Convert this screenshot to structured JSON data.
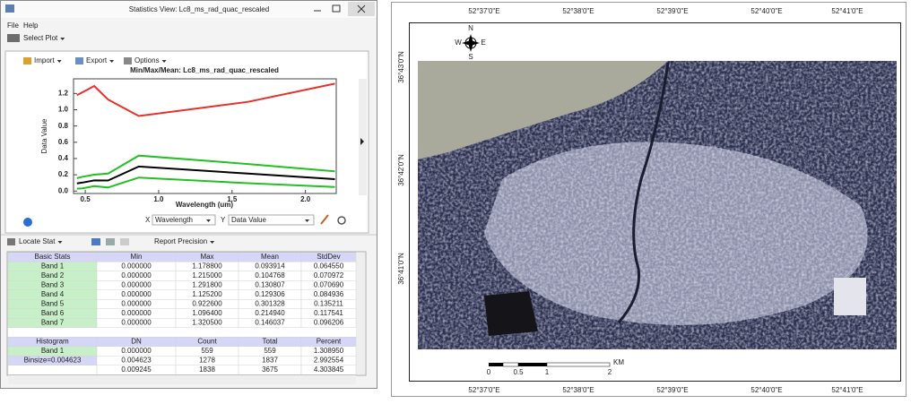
{
  "window": {
    "title": "Statistics View: Lc8_ms_rad_quac_rescaled",
    "menu": [
      "File",
      "Help"
    ],
    "toolbar": "Select Plot",
    "plot_toolbar": [
      "Import",
      "Export",
      "Options"
    ],
    "axis_controls": {
      "x_label": "X",
      "x_value": "Wavelength",
      "y_label": "Y",
      "y_value": "Data Value"
    },
    "stats_toolbar": [
      "Locate Stat",
      "Report Precision"
    ]
  },
  "chart_data": {
    "type": "line",
    "title": "Min/Max/Mean: Lc8_ms_rad_quac_rescaled",
    "x_label": "Wavelength (um)",
    "y_label": "Data Value",
    "x": [
      0.443,
      0.482,
      0.561,
      0.655,
      0.865,
      1.609,
      2.201
    ],
    "series": [
      {
        "color": "#e8302a",
        "values": [
          1.1788,
          1.215,
          1.2918,
          1.1252,
          0.9226,
          1.0964,
          1.3205
        ]
      },
      {
        "color": "#22c022",
        "values": [
          0.158,
          0.176,
          0.2015,
          0.2143,
          0.4365,
          0.3324,
          0.2423
        ]
      },
      {
        "color": "#000000",
        "values": [
          0.0939,
          0.1048,
          0.1308,
          0.1293,
          0.3013,
          0.2149,
          0.146
        ]
      },
      {
        "color": "#22c022",
        "values": [
          0.029,
          0.034,
          0.06,
          0.044,
          0.166,
          0.097,
          0.05
        ]
      }
    ],
    "xlim": [
      0.42,
      2.21
    ],
    "ylim": [
      -0.03,
      1.38
    ],
    "xticks": [
      0.5,
      {
        "value": 1,
        "label": "1.0"
      },
      1.5,
      {
        "value": 2,
        "label": "2.0"
      }
    ],
    "yticks": [
      {
        "value": 0,
        "label": "0.0"
      },
      0.2,
      0.4,
      0.6,
      0.8,
      {
        "value": 1,
        "label": "1.0"
      },
      1.2
    ]
  },
  "table": {
    "basic_header": [
      "Basic Stats",
      "Min",
      "Max",
      "Mean",
      "StdDev"
    ],
    "basic_rows": [
      [
        "Band 1",
        "0.000000",
        "1.178800",
        "0.093914",
        "0.064550"
      ],
      [
        "Band 2",
        "0.000000",
        "1.215000",
        "0.104768",
        "0.070972"
      ],
      [
        "Band 3",
        "0.000000",
        "1.291800",
        "0.130807",
        "0.070690"
      ],
      [
        "Band 4",
        "0.000000",
        "1.125200",
        "0.129306",
        "0.084936"
      ],
      [
        "Band 5",
        "0.000000",
        "0.922600",
        "0.301328",
        "0.135211"
      ],
      [
        "Band 6",
        "0.000000",
        "1.096400",
        "0.214940",
        "0.117541"
      ],
      [
        "Band 7",
        "0.000000",
        "1.320500",
        "0.146037",
        "0.096206"
      ]
    ],
    "histogram_header": [
      "Histogram",
      "DN",
      "Count",
      "Total",
      "Percent"
    ],
    "histogram_rows": [
      [
        "Band 1",
        "0.000000",
        "559",
        "559",
        "1.308950"
      ],
      [
        "Binsize=0.004623",
        "0.004623",
        "1278",
        "1837",
        "2.992554"
      ],
      [
        null,
        "0.009245",
        "1838",
        "3675",
        "4.303845"
      ]
    ]
  },
  "map": {
    "top_longitudes": [
      "52°37'0\"E",
      "52°38'0\"E",
      "52°39'0\"E",
      "52°40'0\"E",
      "52°41'0\"E"
    ],
    "bottom_longitudes": [
      "52°37'0\"E",
      "52°38'0\"E",
      "52°39'0\"E",
      "52°40'0\"E",
      "52°41'0\"E"
    ],
    "left_latitudes": [
      "36°43'0\"N",
      "36°42'0\"N",
      "36°41'0\"N"
    ],
    "north_arrow": [
      "N",
      "W",
      "E",
      "S"
    ],
    "scale_labels": [
      "0",
      "0.5",
      "1",
      "2"
    ],
    "scale_unit": "KM"
  }
}
